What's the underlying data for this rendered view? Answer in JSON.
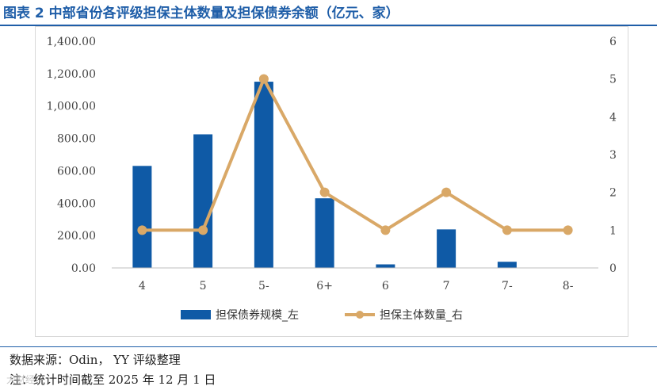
{
  "title": "图表 2 中部省份各评级担保主体数量及担保债券余额（亿元、家）",
  "chart_data": {
    "type": "bar",
    "categories": [
      "4",
      "5",
      "5-",
      "6+",
      "6",
      "7",
      "7-",
      "8-"
    ],
    "series": [
      {
        "name": "担保债券规模_左",
        "type": "bar",
        "axis": "left",
        "color": "#0f5aa6",
        "values": [
          630,
          825,
          1150,
          430,
          22,
          238,
          38,
          2
        ]
      },
      {
        "name": "担保主体数量_右",
        "type": "line",
        "axis": "right",
        "color": "#d9a867",
        "values": [
          1,
          1,
          5,
          2,
          1,
          2,
          1,
          1
        ]
      }
    ],
    "y_left": {
      "min": 0,
      "max": 1400,
      "ticks": [
        "0.00",
        "200.00",
        "400.00",
        "600.00",
        "800.00",
        "1,000.00",
        "1,200.00",
        "1,400.00"
      ]
    },
    "y_right": {
      "min": 0,
      "max": 6,
      "ticks": [
        "0",
        "1",
        "2",
        "3",
        "4",
        "5",
        "6"
      ]
    },
    "grid": false,
    "legend_position": "bottom"
  },
  "footnotes": {
    "source": "数据来源：Odin，  YY 评级整理",
    "note": "注：统计时间截至 2025 年 12 月 1 日"
  },
  "watermark": "大财经"
}
